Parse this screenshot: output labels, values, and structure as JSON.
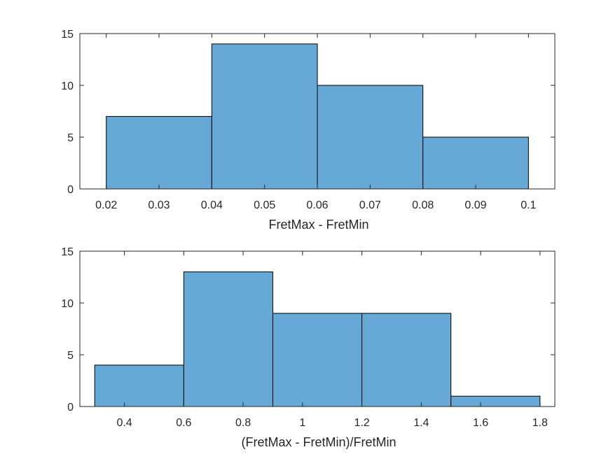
{
  "chart_data": [
    {
      "type": "histogram",
      "xlabel": "FretMax - FretMin",
      "ylabel": "",
      "title": "",
      "bin_edges": [
        0.02,
        0.04,
        0.06,
        0.08,
        0.1
      ],
      "counts": [
        7,
        14,
        10,
        5
      ],
      "xlim": [
        0.015,
        0.105
      ],
      "ylim": [
        0,
        15
      ],
      "xticks": [
        0.02,
        0.03,
        0.04,
        0.05,
        0.06,
        0.07,
        0.08,
        0.09,
        0.1
      ],
      "xtick_labels": [
        "0.02",
        "0.03",
        "0.04",
        "0.05",
        "0.06",
        "0.07",
        "0.08",
        "0.09",
        "0.1"
      ],
      "yticks": [
        0,
        5,
        10,
        15
      ],
      "ytick_labels": [
        "0",
        "5",
        "10",
        "15"
      ],
      "bar_color": "#66A9D7",
      "edge_color": "#000000",
      "grid": false
    },
    {
      "type": "histogram",
      "xlabel": "(FretMax - FretMin)/FretMin",
      "ylabel": "",
      "title": "",
      "bin_edges": [
        0.3,
        0.6,
        0.9,
        1.2,
        1.5,
        1.8
      ],
      "counts": [
        4,
        13,
        9,
        9,
        1
      ],
      "xlim": [
        0.25,
        1.85
      ],
      "ylim": [
        0,
        15
      ],
      "xticks": [
        0.4,
        0.6,
        0.8,
        1.0,
        1.2,
        1.4,
        1.6,
        1.8
      ],
      "xtick_labels": [
        "0.4",
        "0.6",
        "0.8",
        "1",
        "1.2",
        "1.4",
        "1.6",
        "1.8"
      ],
      "yticks": [
        0,
        5,
        10,
        15
      ],
      "ytick_labels": [
        "0",
        "5",
        "10",
        "15"
      ],
      "bar_color": "#66A9D7",
      "edge_color": "#000000",
      "grid": false
    }
  ]
}
